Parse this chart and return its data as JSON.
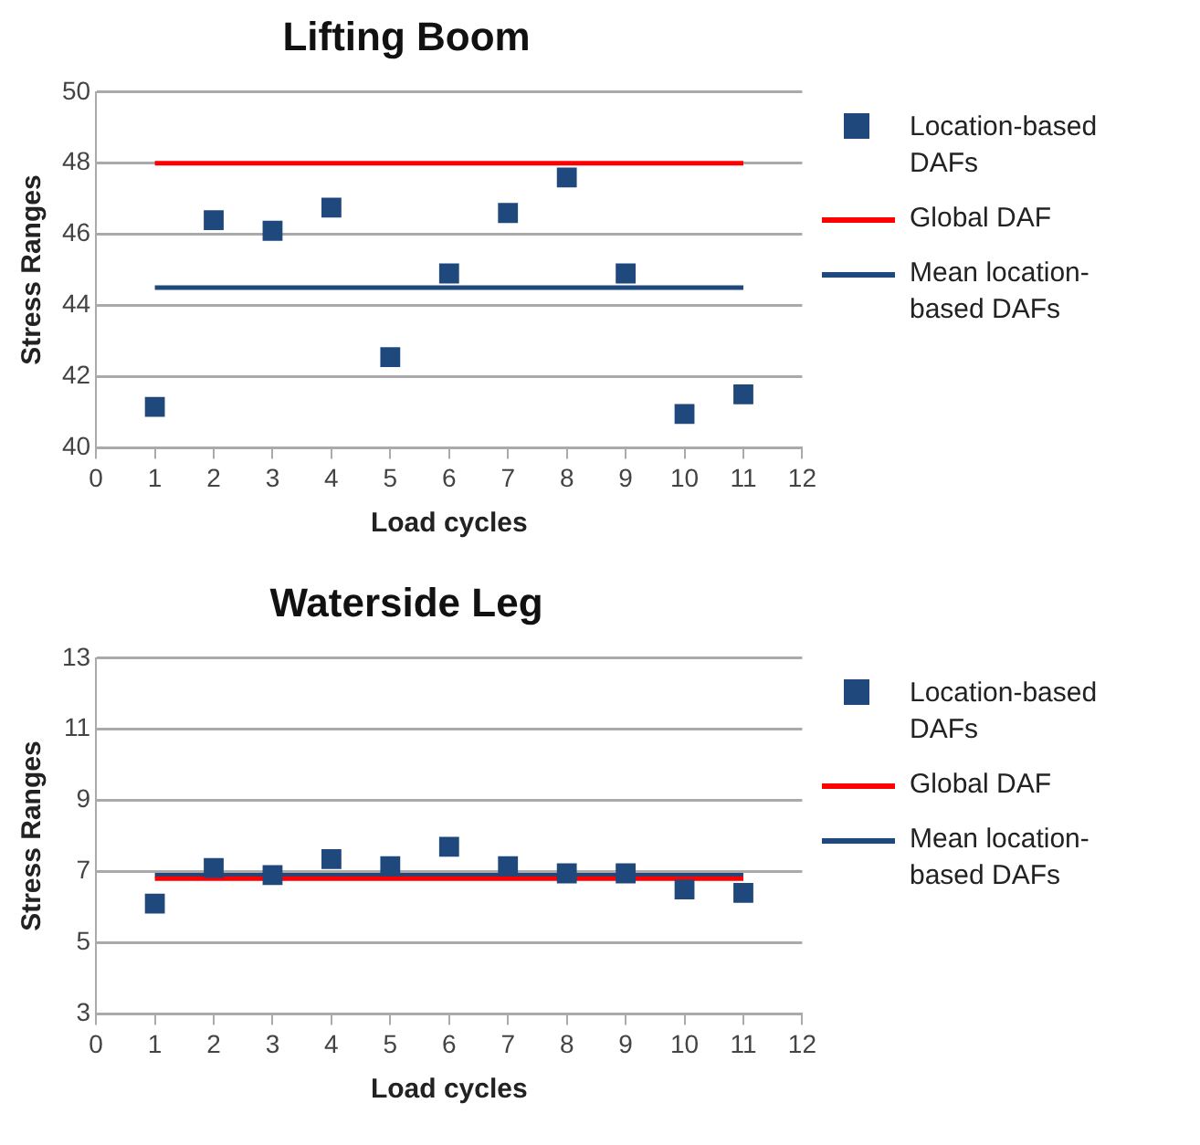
{
  "chart_data": [
    {
      "type": "scatter",
      "title": "Lifting Boom",
      "xlabel": "Load cycles",
      "ylabel": "Stress Ranges",
      "xlim": [
        0,
        12
      ],
      "xticks": [
        0,
        1,
        2,
        3,
        4,
        5,
        6,
        7,
        8,
        9,
        10,
        11,
        12
      ],
      "ylim": [
        40,
        50
      ],
      "yticks": [
        40,
        42,
        44,
        46,
        48,
        50
      ],
      "grid": "y",
      "legend": "right",
      "series": [
        {
          "name": "Location-based DAFs",
          "type": "scatter",
          "marker": "square",
          "color": "#1f497d",
          "x": [
            1,
            2,
            3,
            4,
            5,
            6,
            7,
            8,
            9,
            10,
            11
          ],
          "values": [
            41.15,
            46.4,
            46.1,
            46.75,
            42.55,
            44.9,
            46.6,
            47.6,
            44.9,
            40.95,
            41.5
          ]
        },
        {
          "name": "Global DAF",
          "type": "line",
          "marker": "none",
          "color": "#ff0000",
          "x": [
            1,
            11
          ],
          "values": [
            48,
            48
          ]
        },
        {
          "name": "Mean location-based DAFs",
          "type": "line",
          "marker": "none",
          "color": "#1f497d",
          "x": [
            1,
            11
          ],
          "values": [
            44.5,
            44.5
          ]
        }
      ]
    },
    {
      "type": "scatter",
      "title": "Waterside Leg",
      "xlabel": "Load cycles",
      "ylabel": "Stress Ranges",
      "xlim": [
        0,
        12
      ],
      "xticks": [
        0,
        1,
        2,
        3,
        4,
        5,
        6,
        7,
        8,
        9,
        10,
        11,
        12
      ],
      "ylim": [
        3,
        13
      ],
      "yticks": [
        3,
        5,
        7,
        9,
        11,
        13
      ],
      "grid": "y",
      "legend": "right",
      "series": [
        {
          "name": "Location-based DAFs",
          "type": "scatter",
          "marker": "square",
          "color": "#1f497d",
          "x": [
            1,
            2,
            3,
            4,
            5,
            6,
            7,
            8,
            9,
            10,
            11
          ],
          "values": [
            6.1,
            7.1,
            6.9,
            7.35,
            7.15,
            7.7,
            7.15,
            6.95,
            6.95,
            6.5,
            6.4
          ]
        },
        {
          "name": "Global DAF",
          "type": "line",
          "marker": "none",
          "color": "#ff0000",
          "x": [
            1,
            11
          ],
          "values": [
            6.8,
            6.8
          ]
        },
        {
          "name": "Mean location-based DAFs",
          "type": "line",
          "marker": "none",
          "color": "#1f497d",
          "x": [
            1,
            11
          ],
          "values": [
            6.9,
            6.9
          ]
        }
      ]
    }
  ]
}
